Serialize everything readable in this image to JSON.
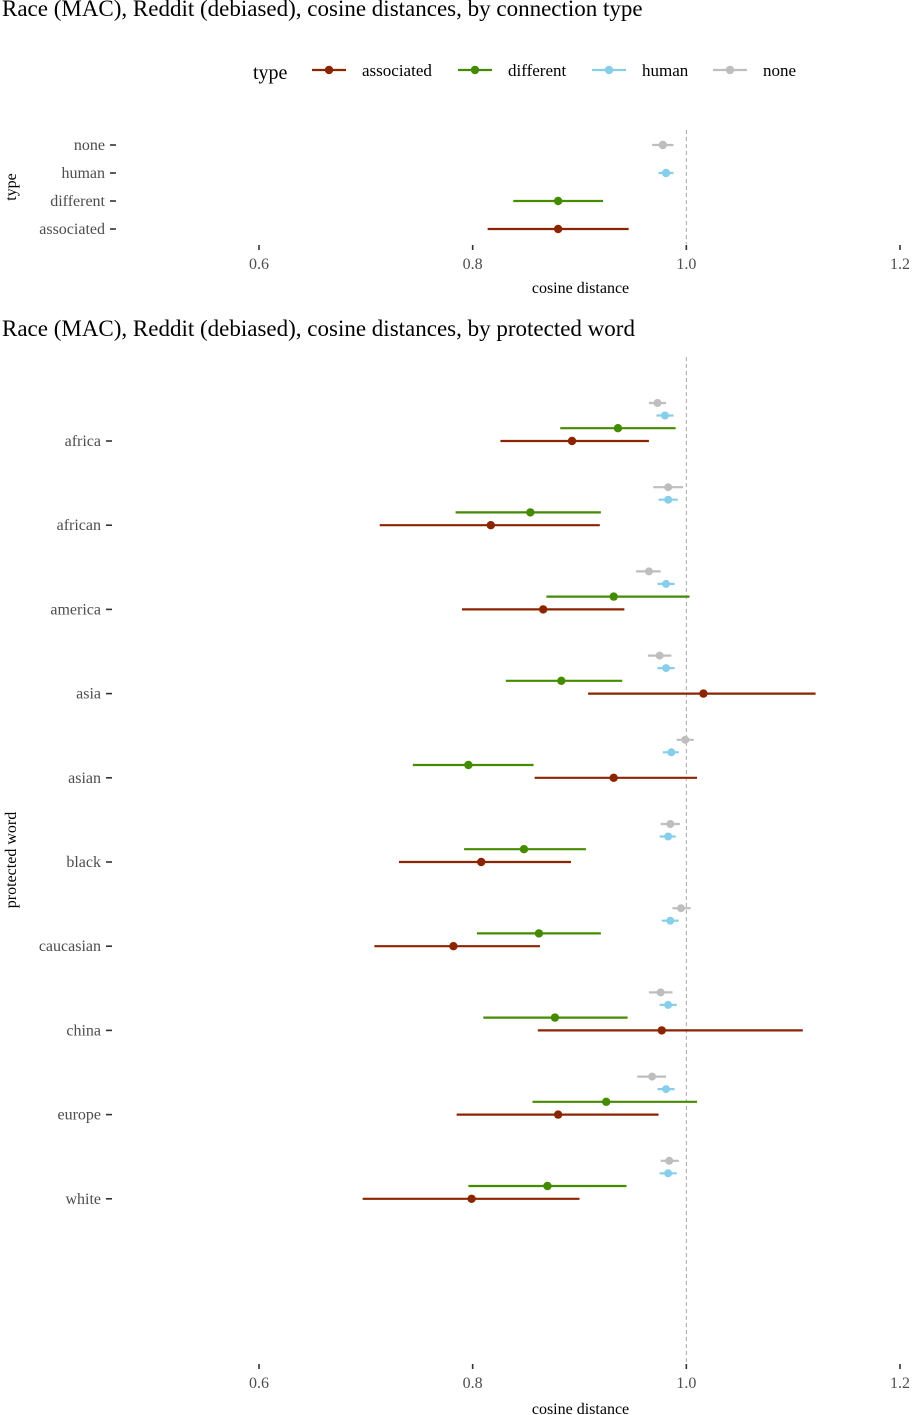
{
  "colors": {
    "associated": "#8B2500",
    "different": "#458B00",
    "human": "#87CEEB",
    "none": "#BEBEBE",
    "reference_line": "#AAAAAA",
    "tick_label": "#4D4D4D"
  },
  "chart_data": [
    {
      "type": "errorbar",
      "title": "Race (MAC), Reddit (debiased),  cosine distances, by connection type",
      "xlabel": "cosine distance",
      "ylabel": "type",
      "xlim": [
        0.6,
        1.2
      ],
      "x_ticks": [
        "0.6",
        "0.8",
        "1.0",
        "1.2"
      ],
      "reference_x": 1.0,
      "grid": false,
      "legend": {
        "title": "type",
        "position": "top",
        "entries": [
          "associated",
          "different",
          "human",
          "none"
        ]
      },
      "categories": [
        "none",
        "human",
        "different",
        "associated"
      ],
      "points": [
        {
          "category": "none",
          "type": "none",
          "mean": 0.978,
          "low": 0.968,
          "high": 0.988
        },
        {
          "category": "human",
          "type": "human",
          "mean": 0.981,
          "low": 0.974,
          "high": 0.988
        },
        {
          "category": "different",
          "type": "different",
          "mean": 0.88,
          "low": 0.838,
          "high": 0.922
        },
        {
          "category": "associated",
          "type": "associated",
          "mean": 0.88,
          "low": 0.814,
          "high": 0.946
        }
      ]
    },
    {
      "type": "errorbar",
      "title": "Race (MAC), Reddit (debiased), cosine distances, by protected word",
      "xlabel": "cosine distance",
      "ylabel": "protected word",
      "xlim": [
        0.6,
        1.2
      ],
      "x_ticks": [
        "0.6",
        "0.8",
        "1.0",
        "1.2"
      ],
      "reference_x": 1.0,
      "grid": false,
      "categories": [
        "africa",
        "african",
        "america",
        "asia",
        "asian",
        "black",
        "caucasian",
        "china",
        "europe",
        "white"
      ],
      "series_order": [
        "none",
        "human",
        "different",
        "associated"
      ],
      "groups": [
        {
          "word": "africa",
          "none": {
            "mean": 0.973,
            "low": 0.965,
            "high": 0.981
          },
          "human": {
            "mean": 0.98,
            "low": 0.972,
            "high": 0.988
          },
          "different": {
            "mean": 0.936,
            "low": 0.882,
            "high": 0.99
          },
          "associated": {
            "mean": 0.893,
            "low": 0.826,
            "high": 0.965
          }
        },
        {
          "word": "african",
          "none": {
            "mean": 0.983,
            "low": 0.969,
            "high": 0.997
          },
          "human": {
            "mean": 0.983,
            "low": 0.974,
            "high": 0.992
          },
          "different": {
            "mean": 0.854,
            "low": 0.784,
            "high": 0.92
          },
          "associated": {
            "mean": 0.817,
            "low": 0.713,
            "high": 0.919
          }
        },
        {
          "word": "america",
          "none": {
            "mean": 0.965,
            "low": 0.953,
            "high": 0.976
          },
          "human": {
            "mean": 0.981,
            "low": 0.973,
            "high": 0.989
          },
          "different": {
            "mean": 0.932,
            "low": 0.869,
            "high": 1.003
          },
          "associated": {
            "mean": 0.866,
            "low": 0.79,
            "high": 0.942
          }
        },
        {
          "word": "asia",
          "none": {
            "mean": 0.975,
            "low": 0.964,
            "high": 0.986
          },
          "human": {
            "mean": 0.981,
            "low": 0.973,
            "high": 0.989
          },
          "different": {
            "mean": 0.883,
            "low": 0.831,
            "high": 0.94
          },
          "associated": {
            "mean": 1.016,
            "low": 0.908,
            "high": 1.121
          }
        },
        {
          "word": "asian",
          "none": {
            "mean": 0.999,
            "low": 0.991,
            "high": 1.007
          },
          "human": {
            "mean": 0.986,
            "low": 0.978,
            "high": 0.993
          },
          "different": {
            "mean": 0.796,
            "low": 0.744,
            "high": 0.857
          },
          "associated": {
            "mean": 0.932,
            "low": 0.858,
            "high": 1.01
          }
        },
        {
          "word": "black",
          "none": {
            "mean": 0.985,
            "low": 0.976,
            "high": 0.994
          },
          "human": {
            "mean": 0.983,
            "low": 0.975,
            "high": 0.99
          },
          "different": {
            "mean": 0.848,
            "low": 0.792,
            "high": 0.906
          },
          "associated": {
            "mean": 0.808,
            "low": 0.731,
            "high": 0.892
          }
        },
        {
          "word": "caucasian",
          "none": {
            "mean": 0.995,
            "low": 0.987,
            "high": 1.004
          },
          "human": {
            "mean": 0.985,
            "low": 0.977,
            "high": 0.993
          },
          "different": {
            "mean": 0.862,
            "low": 0.804,
            "high": 0.92
          },
          "associated": {
            "mean": 0.782,
            "low": 0.708,
            "high": 0.863
          }
        },
        {
          "word": "china",
          "none": {
            "mean": 0.976,
            "low": 0.965,
            "high": 0.987
          },
          "human": {
            "mean": 0.983,
            "low": 0.975,
            "high": 0.991
          },
          "different": {
            "mean": 0.877,
            "low": 0.81,
            "high": 0.945
          },
          "associated": {
            "mean": 0.977,
            "low": 0.861,
            "high": 1.109
          }
        },
        {
          "word": "europe",
          "none": {
            "mean": 0.968,
            "low": 0.954,
            "high": 0.981
          },
          "human": {
            "mean": 0.981,
            "low": 0.973,
            "high": 0.989
          },
          "different": {
            "mean": 0.925,
            "low": 0.856,
            "high": 1.01
          },
          "associated": {
            "mean": 0.88,
            "low": 0.785,
            "high": 0.974
          }
        },
        {
          "word": "white",
          "none": {
            "mean": 0.984,
            "low": 0.976,
            "high": 0.993
          },
          "human": {
            "mean": 0.983,
            "low": 0.975,
            "high": 0.991
          },
          "different": {
            "mean": 0.87,
            "low": 0.796,
            "high": 0.944
          },
          "associated": {
            "mean": 0.799,
            "low": 0.697,
            "high": 0.9
          }
        }
      ]
    }
  ]
}
